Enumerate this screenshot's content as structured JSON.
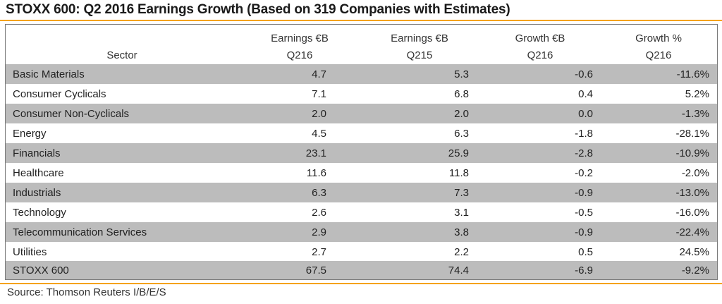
{
  "title": "STOXX 600: Q2 2016 Earnings Growth (Based on 319 Companies with Estimates)",
  "colors": {
    "accent": "#f4a21a",
    "shaded_row": "#bcbcbc",
    "border": "#7a7a7a"
  },
  "chart_data": {
    "type": "table",
    "title": "STOXX 600: Q2 2016 Earnings Growth (Based on 319 Companies with Estimates)",
    "columns": [
      {
        "line1": "",
        "line2": "Sector"
      },
      {
        "line1": "Earnings €B",
        "line2": "Q216"
      },
      {
        "line1": "Earnings €B",
        "line2": "Q215"
      },
      {
        "line1": "Growth €B",
        "line2": "Q216"
      },
      {
        "line1": "Growth %",
        "line2": "Q216"
      }
    ],
    "rows": [
      {
        "sector": "Basic Materials",
        "q216": "4.7",
        "q215": "5.3",
        "growth_b": "-0.6",
        "growth_pct": "-11.6%"
      },
      {
        "sector": "Consumer Cyclicals",
        "q216": "7.1",
        "q215": "6.8",
        "growth_b": "0.4",
        "growth_pct": "5.2%"
      },
      {
        "sector": "Consumer Non-Cyclicals",
        "q216": "2.0",
        "q215": "2.0",
        "growth_b": "0.0",
        "growth_pct": "-1.3%"
      },
      {
        "sector": "Energy",
        "q216": "4.5",
        "q215": "6.3",
        "growth_b": "-1.8",
        "growth_pct": "-28.1%"
      },
      {
        "sector": "Financials",
        "q216": "23.1",
        "q215": "25.9",
        "growth_b": "-2.8",
        "growth_pct": "-10.9%"
      },
      {
        "sector": "Healthcare",
        "q216": "11.6",
        "q215": "11.8",
        "growth_b": "-0.2",
        "growth_pct": "-2.0%"
      },
      {
        "sector": "Industrials",
        "q216": "6.3",
        "q215": "7.3",
        "growth_b": "-0.9",
        "growth_pct": "-13.0%"
      },
      {
        "sector": "Technology",
        "q216": "2.6",
        "q215": "3.1",
        "growth_b": "-0.5",
        "growth_pct": "-16.0%"
      },
      {
        "sector": "Telecommunication Services",
        "q216": "2.9",
        "q215": "3.8",
        "growth_b": "-0.9",
        "growth_pct": "-22.4%"
      },
      {
        "sector": "Utilities",
        "q216": "2.7",
        "q215": "2.2",
        "growth_b": "0.5",
        "growth_pct": "24.5%"
      }
    ],
    "total": {
      "sector": "STOXX 600",
      "q216": "67.5",
      "q215": "74.4",
      "growth_b": "-6.9",
      "growth_pct": "-9.2%"
    }
  },
  "source": "Source: Thomson Reuters I/B/E/S"
}
